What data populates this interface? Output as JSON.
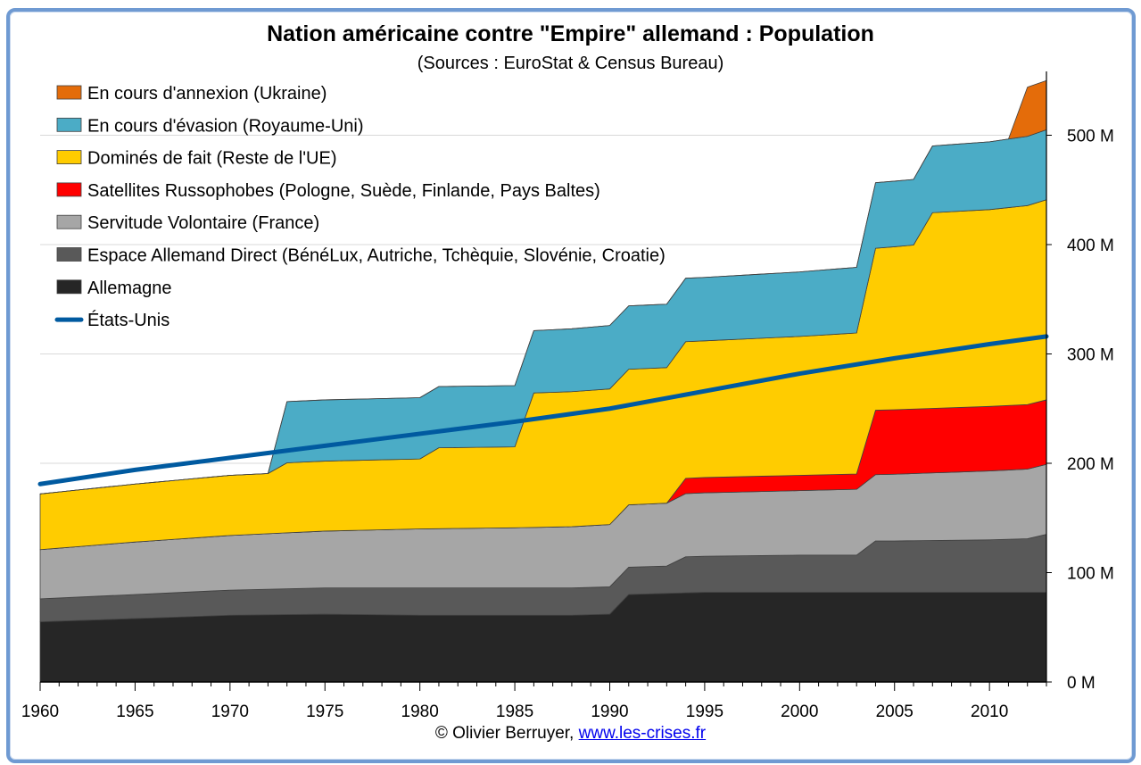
{
  "chart_data": {
    "type": "area",
    "title": "Nation américaine contre \"Empire\" allemand : Population",
    "subtitle": "(Sources : EuroStat & Census Bureau)",
    "xlabel": "",
    "ylabel": "",
    "xlim": [
      1960,
      2013
    ],
    "ylim": [
      0,
      560
    ],
    "x_ticks": [
      1960,
      1965,
      1970,
      1975,
      1980,
      1985,
      1990,
      1995,
      2000,
      2005,
      2010
    ],
    "y_ticks": [
      0,
      100,
      200,
      300,
      400,
      500
    ],
    "y_tick_labels": [
      "0 M",
      "100 M",
      "200 M",
      "300 M",
      "400 M",
      "500 M"
    ],
    "grid": "horizontal",
    "legend_position": "top-left",
    "stacked": true,
    "series": [
      {
        "name": "Allemagne",
        "color": "#262626",
        "points": [
          [
            1960,
            55
          ],
          [
            1965,
            58
          ],
          [
            1970,
            61
          ],
          [
            1975,
            62
          ],
          [
            1980,
            61
          ],
          [
            1985,
            61
          ],
          [
            1988,
            61
          ],
          [
            1990,
            62
          ],
          [
            1991,
            80
          ],
          [
            1995,
            82
          ],
          [
            2000,
            82
          ],
          [
            2005,
            82
          ],
          [
            2010,
            82
          ],
          [
            2013,
            82
          ]
        ]
      },
      {
        "name": "Espace Allemand Direct (BénéLux, Autriche, Tchèquie, Slovénie, Croatie)",
        "color": "#595959",
        "points": [
          [
            1960,
            21
          ],
          [
            1965,
            22
          ],
          [
            1970,
            23
          ],
          [
            1975,
            24
          ],
          [
            1980,
            25
          ],
          [
            1985,
            25
          ],
          [
            1988,
            25
          ],
          [
            1990,
            25
          ],
          [
            1991,
            25
          ],
          [
            1993,
            25
          ],
          [
            1994,
            33
          ],
          [
            1995,
            33
          ],
          [
            2000,
            34
          ],
          [
            2003,
            34
          ],
          [
            2004,
            47
          ],
          [
            2005,
            47
          ],
          [
            2010,
            48
          ],
          [
            2012,
            49
          ],
          [
            2013,
            53
          ]
        ]
      },
      {
        "name": "Servitude Volontaire (France)",
        "color": "#a6a6a6",
        "points": [
          [
            1960,
            45
          ],
          [
            1965,
            48
          ],
          [
            1970,
            50
          ],
          [
            1975,
            52
          ],
          [
            1980,
            54
          ],
          [
            1985,
            55
          ],
          [
            1988,
            56
          ],
          [
            1990,
            57
          ],
          [
            1991,
            57
          ],
          [
            1995,
            58
          ],
          [
            2000,
            59
          ],
          [
            2005,
            61
          ],
          [
            2010,
            63
          ],
          [
            2013,
            64
          ]
        ]
      },
      {
        "name": "Satellites Russophobes (Pologne, Suède, Finlande, Pays Baltes)",
        "color": "#ff0000",
        "points": [
          [
            1960,
            0
          ],
          [
            1993,
            0
          ],
          [
            1994,
            14
          ],
          [
            1995,
            14
          ],
          [
            2000,
            14
          ],
          [
            2003,
            14
          ],
          [
            2004,
            59
          ],
          [
            2005,
            59
          ],
          [
            2010,
            59
          ],
          [
            2013,
            59
          ]
        ]
      },
      {
        "name": "Dominés de fait (Reste de l'UE)",
        "color": "#ffcc00",
        "points": [
          [
            1960,
            51
          ],
          [
            1965,
            53
          ],
          [
            1970,
            55
          ],
          [
            1972,
            55
          ],
          [
            1973,
            64
          ],
          [
            1975,
            64
          ],
          [
            1980,
            64
          ],
          [
            1981,
            74
          ],
          [
            1985,
            74
          ],
          [
            1986,
            123
          ],
          [
            1990,
            124
          ],
          [
            1991,
            124
          ],
          [
            1993,
            124
          ],
          [
            1994,
            125
          ],
          [
            1995,
            125
          ],
          [
            2000,
            127
          ],
          [
            2003,
            129
          ],
          [
            2004,
            148
          ],
          [
            2005,
            149
          ],
          [
            2006,
            150
          ],
          [
            2007,
            179
          ],
          [
            2010,
            180
          ],
          [
            2013,
            183
          ]
        ]
      },
      {
        "name": "En cours d'évasion (Royaume-Uni)",
        "color": "#4bacc6",
        "points": [
          [
            1960,
            0
          ],
          [
            1972,
            0
          ],
          [
            1973,
            56
          ],
          [
            1975,
            56
          ],
          [
            1980,
            56
          ],
          [
            1985,
            56
          ],
          [
            1986,
            57
          ],
          [
            1990,
            58
          ],
          [
            1995,
            58
          ],
          [
            2000,
            59
          ],
          [
            2003,
            60
          ],
          [
            2004,
            60
          ],
          [
            2005,
            60
          ],
          [
            2006,
            60
          ],
          [
            2007,
            61
          ],
          [
            2010,
            62
          ],
          [
            2013,
            64
          ]
        ]
      },
      {
        "name": "En cours d'annexion (Ukraine)",
        "color": "#e46c0a",
        "points": [
          [
            1960,
            0
          ],
          [
            2011,
            0
          ],
          [
            2012,
            45
          ],
          [
            2013,
            45
          ]
        ]
      }
    ],
    "line_series": [
      {
        "name": "États-Unis",
        "color": "#005aa0",
        "points": [
          [
            1960,
            181
          ],
          [
            1965,
            194
          ],
          [
            1970,
            205
          ],
          [
            1975,
            216
          ],
          [
            1980,
            227
          ],
          [
            1985,
            238
          ],
          [
            1990,
            250
          ],
          [
            1995,
            266
          ],
          [
            2000,
            282
          ],
          [
            2005,
            296
          ],
          [
            2010,
            309
          ],
          [
            2013,
            316
          ]
        ]
      }
    ]
  },
  "credit": {
    "author": "© Olivier Berruyer, ",
    "link_text": "www.les-crises.fr"
  }
}
